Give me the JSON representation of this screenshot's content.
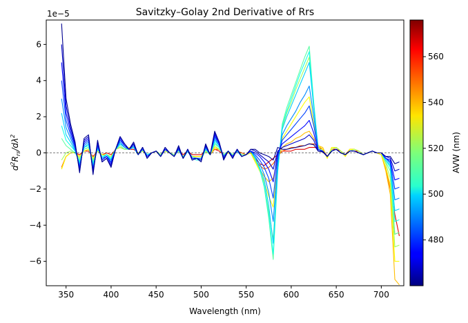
{
  "chart_data": {
    "type": "line",
    "title": "Savitzky–Golay 2nd Derivative of Rrs",
    "xlabel": "Wavelength (nm)",
    "ylabel_parts": [
      "d",
      "2",
      "R",
      "rs",
      "/dλ",
      "2"
    ],
    "offset_text": "1e−5",
    "y_scale_exponent": -5,
    "xlim": [
      328,
      725
    ],
    "ylim": [
      -7.35,
      7.35
    ],
    "x_ticks": [
      350,
      400,
      450,
      500,
      550,
      600,
      650,
      700
    ],
    "y_ticks": [
      -6,
      -4,
      -2,
      0,
      2,
      4,
      6
    ],
    "y_tick_labels": [
      "−6",
      "−4",
      "−2",
      "0",
      "2",
      "4",
      "6"
    ],
    "zero_line": "dashed",
    "grid": false,
    "colormap": "jet",
    "colorbar": {
      "label": "AVW (nm)",
      "range": [
        460,
        576
      ],
      "ticks": [
        480,
        500,
        520,
        540,
        560
      ]
    },
    "wavelengths": [
      345,
      350,
      355,
      360,
      365,
      370,
      375,
      380,
      385,
      390,
      395,
      400,
      405,
      410,
      415,
      420,
      425,
      430,
      435,
      440,
      445,
      450,
      455,
      460,
      465,
      470,
      475,
      480,
      485,
      490,
      495,
      500,
      505,
      510,
      515,
      520,
      525,
      530,
      535,
      540,
      545,
      550,
      555,
      560,
      565,
      570,
      575,
      580,
      585,
      590,
      595,
      600,
      605,
      610,
      615,
      620,
      625,
      630,
      635,
      640,
      645,
      650,
      655,
      660,
      665,
      670,
      675,
      680,
      685,
      690,
      695,
      700,
      705,
      710,
      715,
      720
    ],
    "series": [
      {
        "avw": 462,
        "values": [
          7.15,
          3.0,
          1.6,
          0.6,
          -1.1,
          0.8,
          1.0,
          -1.2,
          0.7,
          -0.5,
          -0.3,
          -0.8,
          0.2,
          0.9,
          0.5,
          0.2,
          0.6,
          -0.1,
          0.3,
          -0.3,
          0.0,
          0.1,
          -0.2,
          0.3,
          0.0,
          -0.2,
          0.4,
          -0.3,
          0.2,
          -0.4,
          -0.3,
          -0.5,
          0.5,
          -0.1,
          1.2,
          0.6,
          -0.4,
          0.1,
          -0.3,
          0.2,
          -0.2,
          -0.1,
          0.2,
          0.2,
          0.0,
          -0.1,
          -0.2,
          -0.4,
          0.3,
          0.2,
          0.2,
          0.25,
          0.3,
          0.35,
          0.4,
          0.5,
          0.45,
          0.1,
          0.05,
          -0.2,
          0.1,
          0.2,
          0.0,
          -0.1,
          0.1,
          0.1,
          0.0,
          -0.1,
          0.0,
          0.1,
          0.0,
          0.0,
          -0.2,
          -0.2,
          -0.6,
          -0.5
        ]
      },
      {
        "avw": 468,
        "values": [
          6.0,
          2.6,
          1.4,
          0.5,
          -1.0,
          0.7,
          0.9,
          -1.1,
          0.6,
          -0.5,
          -0.3,
          -0.7,
          0.2,
          0.9,
          0.5,
          0.2,
          0.5,
          -0.1,
          0.3,
          -0.3,
          0.0,
          0.1,
          -0.2,
          0.3,
          0.0,
          -0.2,
          0.3,
          -0.3,
          0.2,
          -0.4,
          -0.3,
          -0.4,
          0.4,
          -0.1,
          1.1,
          0.6,
          -0.3,
          0.1,
          -0.3,
          0.2,
          -0.2,
          -0.1,
          0.2,
          0.1,
          -0.1,
          -0.3,
          -0.5,
          -0.9,
          0.1,
          0.3,
          0.4,
          0.5,
          0.6,
          0.7,
          0.8,
          1.0,
          0.7,
          0.1,
          0.1,
          -0.2,
          0.1,
          0.2,
          0.0,
          -0.1,
          0.1,
          0.1,
          0.0,
          -0.1,
          0.0,
          0.1,
          0.0,
          0.0,
          -0.2,
          -0.3,
          -1.0,
          -0.9
        ]
      },
      {
        "avw": 475,
        "values": [
          5.0,
          2.2,
          1.2,
          0.4,
          -0.9,
          0.6,
          0.8,
          -1.0,
          0.5,
          -0.4,
          -0.2,
          -0.6,
          0.2,
          0.8,
          0.4,
          0.2,
          0.5,
          -0.1,
          0.3,
          -0.2,
          0.0,
          0.1,
          -0.2,
          0.2,
          0.0,
          -0.2,
          0.3,
          -0.3,
          0.2,
          -0.3,
          -0.3,
          -0.4,
          0.4,
          -0.1,
          1.0,
          0.5,
          -0.3,
          0.1,
          -0.2,
          0.2,
          -0.2,
          -0.1,
          0.1,
          0.0,
          -0.2,
          -0.5,
          -0.9,
          -1.6,
          0.0,
          0.5,
          0.7,
          0.9,
          1.1,
          1.3,
          1.5,
          1.8,
          1.1,
          0.1,
          0.1,
          -0.2,
          0.1,
          0.2,
          0.0,
          -0.1,
          0.1,
          0.1,
          0.0,
          -0.1,
          0.0,
          0.1,
          0.0,
          0.0,
          -0.3,
          -0.4,
          -1.5,
          -1.4
        ]
      },
      {
        "avw": 482,
        "values": [
          4.0,
          1.8,
          1.0,
          0.3,
          -0.8,
          0.5,
          0.7,
          -0.9,
          0.4,
          -0.4,
          -0.2,
          -0.5,
          0.2,
          0.7,
          0.4,
          0.2,
          0.4,
          -0.1,
          0.2,
          -0.2,
          0.0,
          0.1,
          -0.2,
          0.2,
          0.0,
          -0.2,
          0.2,
          -0.3,
          0.2,
          -0.3,
          -0.3,
          -0.4,
          0.3,
          -0.1,
          0.9,
          0.5,
          -0.2,
          0.1,
          -0.2,
          0.2,
          -0.2,
          -0.1,
          0.1,
          -0.1,
          -0.4,
          -0.8,
          -1.4,
          -2.5,
          -0.2,
          0.7,
          1.0,
          1.3,
          1.6,
          1.9,
          2.2,
          2.6,
          1.5,
          0.2,
          0.1,
          -0.2,
          0.1,
          0.2,
          0.0,
          -0.1,
          0.1,
          0.1,
          0.0,
          -0.1,
          0.0,
          0.1,
          0.0,
          0.0,
          -0.3,
          -0.5,
          -2.0,
          -1.9
        ]
      },
      {
        "avw": 490,
        "values": [
          3.0,
          1.4,
          0.8,
          0.2,
          -0.7,
          0.4,
          0.6,
          -0.8,
          0.3,
          -0.3,
          -0.2,
          -0.4,
          0.2,
          0.6,
          0.3,
          0.2,
          0.4,
          -0.1,
          0.2,
          -0.2,
          0.0,
          0.1,
          -0.2,
          0.2,
          0.0,
          -0.2,
          0.2,
          -0.3,
          0.1,
          -0.3,
          -0.3,
          -0.3,
          0.3,
          -0.1,
          0.8,
          0.4,
          -0.2,
          0.1,
          -0.2,
          0.1,
          -0.2,
          -0.1,
          0.1,
          -0.2,
          -0.6,
          -1.2,
          -2.2,
          -3.8,
          -0.5,
          1.0,
          1.5,
          1.9,
          2.3,
          2.8,
          3.2,
          3.7,
          2.0,
          0.2,
          0.1,
          -0.2,
          0.1,
          0.2,
          0.0,
          -0.1,
          0.1,
          0.1,
          0.0,
          -0.1,
          0.0,
          0.1,
          0.0,
          0.0,
          -0.3,
          -0.6,
          -2.6,
          -2.5
        ]
      },
      {
        "avw": 498,
        "values": [
          2.2,
          1.0,
          0.6,
          0.1,
          -0.6,
          0.3,
          0.5,
          -0.7,
          0.3,
          -0.3,
          -0.1,
          -0.4,
          0.2,
          0.5,
          0.3,
          0.2,
          0.3,
          -0.1,
          0.2,
          -0.1,
          0.0,
          0.1,
          -0.2,
          0.2,
          0.0,
          -0.2,
          0.2,
          -0.3,
          0.1,
          -0.3,
          -0.3,
          -0.3,
          0.2,
          -0.1,
          0.7,
          0.4,
          -0.2,
          0.1,
          -0.2,
          0.1,
          -0.2,
          -0.1,
          0.1,
          -0.3,
          -0.8,
          -1.5,
          -2.9,
          -5.0,
          -0.8,
          1.3,
          2.0,
          2.6,
          3.2,
          3.8,
          4.4,
          5.0,
          2.5,
          0.2,
          0.1,
          -0.2,
          0.1,
          0.2,
          0.0,
          -0.1,
          0.1,
          0.1,
          0.0,
          -0.1,
          0.0,
          0.1,
          0.0,
          0.0,
          -0.4,
          -0.7,
          -3.2,
          -3.1
        ]
      },
      {
        "avw": 506,
        "values": [
          1.5,
          0.7,
          0.4,
          0.1,
          -0.5,
          0.3,
          0.4,
          -0.6,
          0.2,
          -0.2,
          -0.1,
          -0.3,
          0.2,
          0.5,
          0.3,
          0.2,
          0.3,
          -0.1,
          0.2,
          -0.1,
          0.0,
          0.1,
          -0.2,
          0.2,
          0.0,
          -0.2,
          0.2,
          -0.3,
          0.1,
          -0.3,
          -0.4,
          -0.4,
          0.2,
          -0.1,
          0.6,
          0.3,
          -0.2,
          0.1,
          -0.2,
          0.1,
          -0.2,
          -0.1,
          0.1,
          -0.3,
          -0.9,
          -1.8,
          -3.4,
          -5.6,
          -1.0,
          1.5,
          2.3,
          3.0,
          3.7,
          4.4,
          5.0,
          5.6,
          2.7,
          0.2,
          0.1,
          -0.2,
          0.1,
          0.2,
          0.0,
          -0.1,
          0.1,
          0.1,
          0.0,
          -0.1,
          0.0,
          0.1,
          0.0,
          0.0,
          -0.4,
          -0.8,
          -3.8,
          -3.7
        ]
      },
      {
        "avw": 514,
        "values": [
          0.8,
          0.4,
          0.2,
          0.0,
          -0.4,
          0.2,
          0.3,
          -0.5,
          0.2,
          -0.2,
          -0.1,
          -0.3,
          0.2,
          0.4,
          0.2,
          0.2,
          0.3,
          -0.1,
          0.2,
          -0.1,
          0.0,
          0.1,
          -0.1,
          0.2,
          0.0,
          -0.1,
          0.1,
          -0.2,
          0.1,
          -0.2,
          -0.3,
          -0.3,
          0.2,
          -0.1,
          0.5,
          0.3,
          -0.1,
          0.1,
          -0.1,
          0.1,
          -0.1,
          -0.1,
          0.1,
          -0.3,
          -0.9,
          -1.9,
          -3.6,
          -5.9,
          -1.1,
          1.6,
          2.5,
          3.2,
          3.9,
          4.6,
          5.3,
          5.9,
          2.8,
          0.2,
          0.1,
          -0.2,
          0.1,
          0.2,
          0.0,
          -0.1,
          0.1,
          0.1,
          0.0,
          -0.1,
          0.0,
          0.1,
          0.0,
          0.0,
          -0.5,
          -1.0,
          -4.5,
          -4.4
        ]
      },
      {
        "avw": 522,
        "values": [
          -0.4,
          0.0,
          0.1,
          0.0,
          -0.3,
          0.2,
          0.3,
          -0.4,
          0.2,
          -0.2,
          -0.1,
          -0.2,
          0.2,
          0.3,
          0.2,
          0.2,
          0.3,
          0.0,
          0.1,
          -0.1,
          0.0,
          0.1,
          -0.1,
          0.1,
          0.0,
          -0.1,
          0.1,
          -0.2,
          0.1,
          -0.2,
          -0.3,
          -0.3,
          0.1,
          -0.1,
          0.4,
          0.2,
          -0.1,
          0.1,
          -0.1,
          0.1,
          -0.1,
          -0.1,
          0.1,
          -0.4,
          -0.9,
          -1.8,
          -3.2,
          -4.8,
          -1.0,
          1.4,
          2.2,
          2.8,
          3.5,
          4.1,
          4.7,
          5.3,
          2.5,
          0.3,
          0.1,
          -0.2,
          0.2,
          0.3,
          0.1,
          -0.1,
          0.1,
          0.2,
          0.1,
          -0.1,
          0.0,
          0.1,
          0.0,
          0.0,
          -0.6,
          -1.4,
          -5.2,
          -5.1
        ]
      },
      {
        "avw": 532,
        "values": [
          -0.9,
          -0.2,
          0.0,
          0.0,
          -0.2,
          0.1,
          0.2,
          -0.3,
          0.1,
          -0.1,
          -0.1,
          -0.2,
          0.2,
          0.3,
          0.2,
          0.3,
          0.3,
          0.0,
          0.1,
          -0.1,
          0.0,
          0.1,
          -0.1,
          0.1,
          0.0,
          -0.1,
          0.1,
          -0.2,
          0.1,
          -0.2,
          -0.2,
          -0.2,
          0.1,
          -0.1,
          0.3,
          0.2,
          -0.1,
          0.0,
          -0.1,
          0.1,
          -0.1,
          -0.1,
          0.0,
          -0.5,
          -1.0,
          -1.6,
          -2.4,
          -3.0,
          -0.6,
          0.8,
          1.2,
          1.6,
          2.0,
          2.4,
          2.8,
          3.1,
          1.6,
          0.4,
          0.2,
          -0.3,
          0.3,
          0.3,
          0.1,
          -0.2,
          0.2,
          0.2,
          0.1,
          -0.1,
          0.0,
          0.1,
          0.0,
          -0.1,
          -0.8,
          -1.8,
          -6.0,
          -6.0
        ]
      },
      {
        "avw": 540,
        "values": [
          -0.9,
          -0.2,
          0.0,
          0.0,
          -0.2,
          0.1,
          0.2,
          -0.3,
          0.1,
          -0.1,
          -0.1,
          -0.2,
          0.2,
          0.3,
          0.2,
          0.3,
          0.3,
          0.0,
          0.1,
          -0.1,
          0.0,
          0.1,
          -0.1,
          0.1,
          0.0,
          -0.1,
          0.1,
          -0.2,
          0.1,
          -0.2,
          -0.2,
          -0.2,
          0.1,
          -0.1,
          0.3,
          0.2,
          -0.1,
          0.0,
          -0.1,
          0.1,
          -0.1,
          -0.1,
          0.0,
          -0.5,
          -0.9,
          -1.3,
          -1.6,
          -1.4,
          -0.3,
          0.3,
          0.5,
          0.6,
          0.8,
          0.9,
          1.1,
          1.2,
          0.8,
          0.4,
          0.3,
          -0.3,
          0.3,
          0.3,
          0.1,
          -0.2,
          0.2,
          0.2,
          0.1,
          -0.1,
          0.0,
          0.1,
          0.0,
          -0.1,
          -1.0,
          -2.3,
          -7.0,
          -7.3
        ]
      },
      {
        "avw": 550,
        "values": [
          -0.8,
          -0.2,
          0.0,
          0.0,
          -0.2,
          0.1,
          0.2,
          -0.3,
          0.1,
          -0.1,
          -0.1,
          -0.2,
          0.2,
          0.3,
          0.2,
          0.2,
          0.3,
          0.0,
          0.1,
          -0.1,
          0.0,
          0.1,
          -0.1,
          0.1,
          0.0,
          -0.1,
          0.1,
          -0.2,
          0.1,
          -0.2,
          -0.2,
          -0.2,
          0.1,
          -0.1,
          0.2,
          0.2,
          -0.1,
          0.0,
          -0.1,
          0.1,
          0.0,
          -0.1,
          0.0,
          -0.4,
          -0.7,
          -0.9,
          -0.8,
          -0.6,
          -0.2,
          0.1,
          0.2,
          0.3,
          0.3,
          0.4,
          0.4,
          0.5,
          0.5,
          0.4,
          0.2,
          -0.2,
          0.2,
          0.3,
          0.1,
          -0.1,
          0.2,
          0.2,
          0.1,
          -0.1,
          0.0,
          0.1,
          0.0,
          -0.1,
          -0.9,
          -2.0,
          -4.5,
          -4.4
        ]
      },
      {
        "avw": 565,
        "values": [
          -0.8,
          -0.2,
          0.0,
          0.0,
          -0.1,
          0.1,
          0.1,
          -0.2,
          0.1,
          -0.1,
          0.0,
          -0.1,
          0.2,
          0.3,
          0.2,
          0.2,
          0.2,
          0.0,
          0.1,
          -0.1,
          0.0,
          0.1,
          -0.1,
          0.1,
          0.0,
          -0.1,
          0.1,
          -0.1,
          0.1,
          -0.1,
          -0.1,
          -0.1,
          0.1,
          0.0,
          0.2,
          0.1,
          -0.1,
          0.0,
          -0.1,
          0.1,
          0.0,
          -0.1,
          0.0,
          -0.3,
          -0.6,
          -0.7,
          -0.5,
          -0.3,
          -0.1,
          0.1,
          0.1,
          0.1,
          0.2,
          0.2,
          0.2,
          0.3,
          0.3,
          0.3,
          0.2,
          -0.2,
          0.2,
          0.2,
          0.1,
          -0.1,
          0.1,
          0.1,
          0.1,
          -0.1,
          0.0,
          0.1,
          0.0,
          -0.1,
          -0.8,
          -1.8,
          -3.4,
          -4.6
        ]
      }
    ]
  }
}
